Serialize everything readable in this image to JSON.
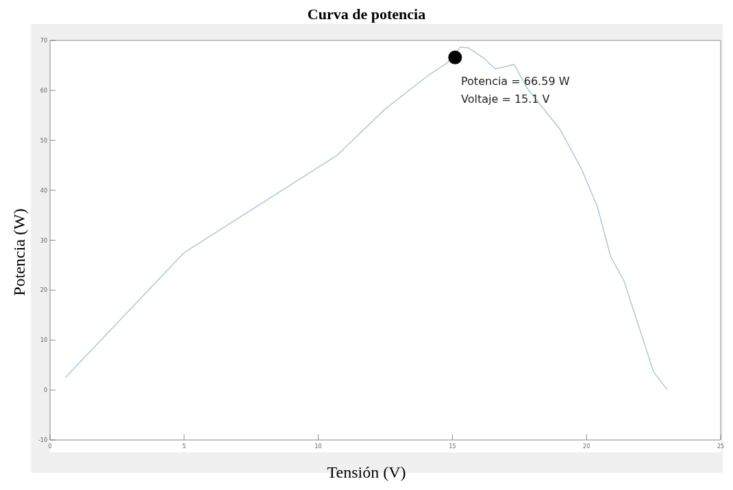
{
  "chart_data": {
    "type": "line",
    "title": "Curva de potencia",
    "xlabel": "Tensión (V)",
    "ylabel": "Potencia (W)",
    "xlim": [
      0,
      25
    ],
    "xticks": [
      0,
      5,
      10,
      15,
      20,
      25
    ],
    "ylim": [
      -10,
      70
    ],
    "yticks": [
      -10,
      0,
      10,
      20,
      30,
      40,
      50,
      60,
      70
    ],
    "grid": false,
    "marker": "none",
    "line_style": "solid",
    "series": [
      {
        "color": "#a9c8dc",
        "x": [
          0.57,
          5,
          10.7,
          12.5,
          14.1,
          14.8,
          15.3,
          15.6,
          16.2,
          16.6,
          17.3,
          17.8,
          19.0,
          19.8,
          20.4,
          20.9,
          21.4,
          22.5,
          23.0
        ],
        "values": [
          2.5,
          27.5,
          47,
          56.3,
          63,
          65.5,
          68.7,
          68.5,
          66.3,
          64.3,
          65.2,
          60.3,
          52.3,
          44.4,
          36.8,
          26.7,
          21.8,
          3.6,
          0.1
        ]
      },
      {
        "type": "scatter",
        "color": "#000000",
        "marker": "circle",
        "x": [
          15.1
        ],
        "values": [
          66.59
        ]
      }
    ],
    "annotations": [
      "Potencia = 66.59 W",
      "Voltaje = 15.1 V"
    ]
  }
}
